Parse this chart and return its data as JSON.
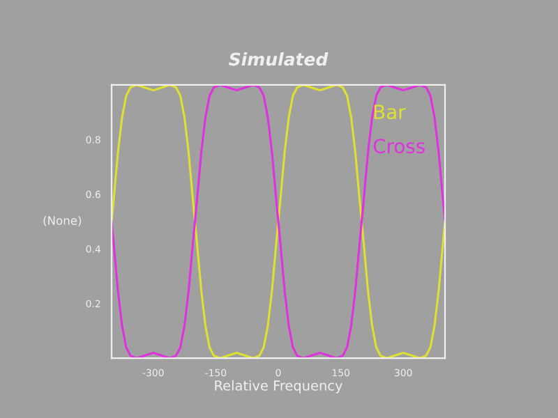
{
  "chart_data": {
    "type": "line",
    "title": "Simulated",
    "xlabel": "Relative Frequency",
    "ylabel": "(None)",
    "x": [
      -400,
      -395,
      -385,
      -375,
      -365,
      -355,
      -340,
      -320,
      -300,
      -280,
      -260,
      -245,
      -235,
      -225,
      -215,
      -205,
      -200,
      -195,
      -185,
      -175,
      -165,
      -155,
      -140,
      -120,
      -100,
      -80,
      -60,
      -45,
      -35,
      -25,
      -15,
      -5,
      0,
      5,
      15,
      25,
      35,
      45,
      60,
      80,
      100,
      120,
      140,
      155,
      165,
      175,
      185,
      195,
      200,
      205,
      215,
      225,
      235,
      245,
      260,
      280,
      300,
      320,
      340,
      355,
      365,
      375,
      385,
      395,
      400
    ],
    "series": [
      {
        "name": "Bar",
        "color": "#e0e030",
        "values": [
          0.5,
          0.58,
          0.75,
          0.88,
          0.96,
          0.99,
          1.0,
          0.99,
          0.98,
          0.99,
          1.0,
          0.99,
          0.96,
          0.88,
          0.75,
          0.58,
          0.5,
          0.42,
          0.25,
          0.12,
          0.04,
          0.01,
          0.0,
          0.01,
          0.02,
          0.01,
          0.0,
          0.01,
          0.04,
          0.12,
          0.25,
          0.42,
          0.5,
          0.58,
          0.75,
          0.88,
          0.96,
          0.99,
          1.0,
          0.99,
          0.98,
          0.99,
          1.0,
          0.99,
          0.96,
          0.88,
          0.75,
          0.58,
          0.5,
          0.42,
          0.25,
          0.12,
          0.04,
          0.01,
          0.0,
          0.01,
          0.02,
          0.01,
          0.0,
          0.01,
          0.04,
          0.12,
          0.25,
          0.42,
          0.5
        ]
      },
      {
        "name": "Cross",
        "color": "#e030e0",
        "values": [
          0.5,
          0.42,
          0.25,
          0.12,
          0.04,
          0.01,
          0.0,
          0.01,
          0.02,
          0.01,
          0.0,
          0.01,
          0.04,
          0.12,
          0.25,
          0.42,
          0.5,
          0.58,
          0.75,
          0.88,
          0.96,
          0.99,
          1.0,
          0.99,
          0.98,
          0.99,
          1.0,
          0.99,
          0.96,
          0.88,
          0.75,
          0.58,
          0.5,
          0.42,
          0.25,
          0.12,
          0.04,
          0.01,
          0.0,
          0.01,
          0.02,
          0.01,
          0.0,
          0.01,
          0.04,
          0.12,
          0.25,
          0.42,
          0.5,
          0.58,
          0.75,
          0.88,
          0.96,
          0.99,
          1.0,
          0.99,
          0.98,
          0.99,
          1.0,
          0.99,
          0.96,
          0.88,
          0.75,
          0.58,
          0.5
        ]
      }
    ],
    "xlim": [
      -400,
      400
    ],
    "xticks": [
      -300,
      -150,
      0,
      150,
      300
    ],
    "ylim": [
      0,
      1
    ],
    "yticks": [
      0.2,
      0.4,
      0.6,
      0.8
    ],
    "grid": false,
    "legend": "top right",
    "marker": "none",
    "line_style": "solid"
  }
}
